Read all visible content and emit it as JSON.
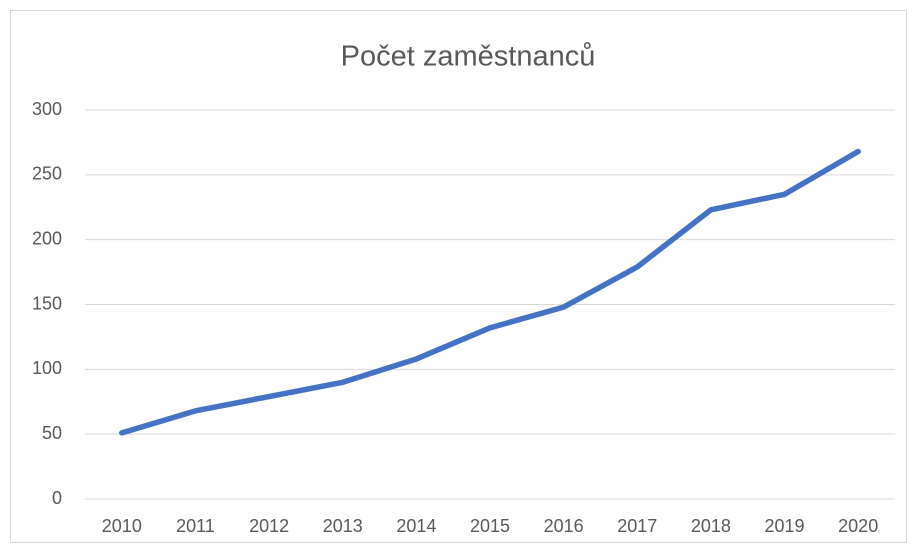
{
  "chart_data": {
    "type": "line",
    "title": "Počet zaměstnanců",
    "categories": [
      "2010",
      "2011",
      "2012",
      "2013",
      "2014",
      "2015",
      "2016",
      "2017",
      "2018",
      "2019",
      "2020"
    ],
    "series": [
      {
        "name": "Počet zaměstnanců",
        "color": "#4472c4",
        "values": [
          51,
          68,
          79,
          90,
          108,
          132,
          148,
          179,
          223,
          235,
          268
        ]
      }
    ],
    "ylim": [
      0,
      300
    ],
    "yticks": [
      0,
      50,
      100,
      150,
      200,
      250,
      300
    ],
    "grid": true
  }
}
